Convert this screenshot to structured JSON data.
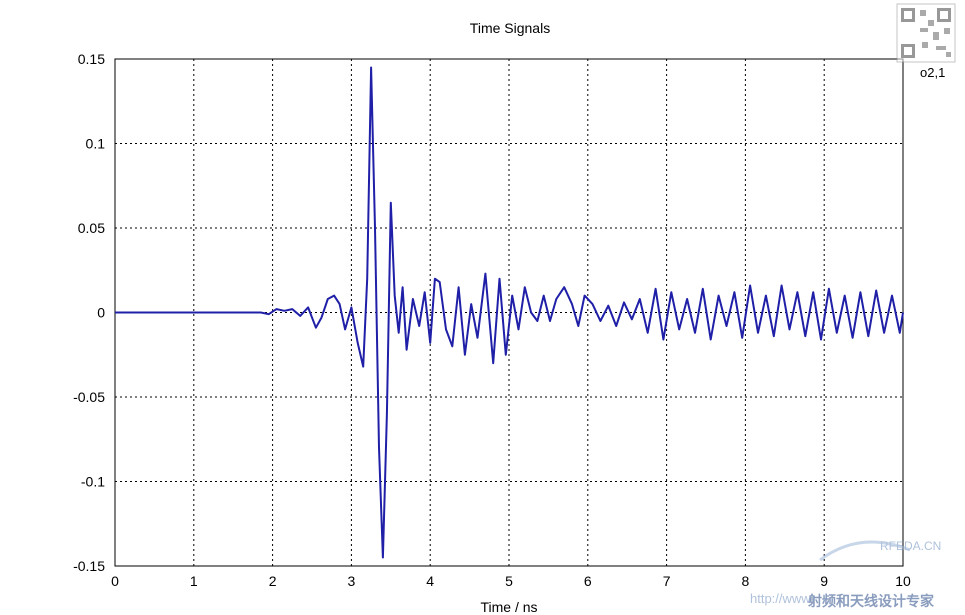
{
  "chart_data": {
    "type": "line",
    "title": "Time Signals",
    "xlabel": "Time / ns",
    "ylabel": "",
    "xlim": [
      0,
      10
    ],
    "ylim": [
      -0.15,
      0.15
    ],
    "x_ticks": [
      0,
      1,
      2,
      3,
      4,
      5,
      6,
      7,
      8,
      9,
      10
    ],
    "y_ticks": [
      0.15,
      0.1,
      0.05,
      0,
      -0.05,
      -0.1,
      -0.15
    ],
    "y_tick_labels": [
      "0.15",
      "0.1",
      "0.05",
      "0",
      "-0.05",
      "-0.1",
      "-0.15"
    ],
    "grid": true,
    "legend_position": "top-right",
    "series": [
      {
        "name": "o2,1",
        "color": "#1f1fa8",
        "x": [
          0,
          1.0,
          1.85,
          1.95,
          2.05,
          2.15,
          2.25,
          2.35,
          2.45,
          2.55,
          2.62,
          2.7,
          2.78,
          2.85,
          2.92,
          3.0,
          3.08,
          3.15,
          3.2,
          3.25,
          3.3,
          3.35,
          3.4,
          3.45,
          3.5,
          3.55,
          3.6,
          3.65,
          3.7,
          3.78,
          3.86,
          3.93,
          4.0,
          4.06,
          4.12,
          4.2,
          4.28,
          4.36,
          4.44,
          4.52,
          4.6,
          4.7,
          4.8,
          4.88,
          4.96,
          5.04,
          5.12,
          5.2,
          5.28,
          5.36,
          5.44,
          5.52,
          5.6,
          5.7,
          5.8,
          5.88,
          5.96,
          6.06,
          6.16,
          6.26,
          6.36,
          6.46,
          6.56,
          6.66,
          6.76,
          6.86,
          6.96,
          7.06,
          7.16,
          7.26,
          7.36,
          7.46,
          7.56,
          7.66,
          7.76,
          7.86,
          7.96,
          8.06,
          8.16,
          8.26,
          8.36,
          8.46,
          8.56,
          8.66,
          8.76,
          8.86,
          8.96,
          9.06,
          9.16,
          9.26,
          9.36,
          9.46,
          9.56,
          9.66,
          9.76,
          9.86,
          9.96,
          10.0
        ],
        "y": [
          0,
          0,
          0,
          -0.001,
          0.002,
          0.001,
          0.002,
          -0.002,
          0.003,
          -0.009,
          -0.003,
          0.008,
          0.01,
          0.005,
          -0.01,
          0.003,
          -0.018,
          -0.032,
          0.02,
          0.145,
          0.05,
          -0.08,
          -0.145,
          -0.06,
          0.065,
          0.01,
          -0.012,
          0.015,
          -0.022,
          0.008,
          -0.008,
          0.012,
          -0.018,
          0.02,
          0.018,
          -0.01,
          -0.02,
          0.015,
          -0.025,
          0.005,
          -0.015,
          0.023,
          -0.03,
          0.02,
          -0.025,
          0.01,
          -0.01,
          0.015,
          0.0,
          -0.005,
          0.01,
          -0.005,
          0.008,
          0.015,
          0.005,
          -0.008,
          0.01,
          0.005,
          -0.005,
          0.004,
          -0.008,
          0.006,
          -0.004,
          0.008,
          -0.012,
          0.014,
          -0.016,
          0.012,
          -0.01,
          0.008,
          -0.012,
          0.014,
          -0.016,
          0.01,
          -0.008,
          0.012,
          -0.015,
          0.016,
          -0.012,
          0.01,
          -0.014,
          0.016,
          -0.01,
          0.012,
          -0.014,
          0.012,
          -0.016,
          0.014,
          -0.012,
          0.01,
          -0.015,
          0.012,
          -0.014,
          0.013,
          -0.012,
          0.01,
          -0.012,
          0.0
        ]
      }
    ]
  },
  "watermark": {
    "site": "RFEDA.CN",
    "url": "http://www.",
    "cn_text": "射频和天线设计专家"
  }
}
